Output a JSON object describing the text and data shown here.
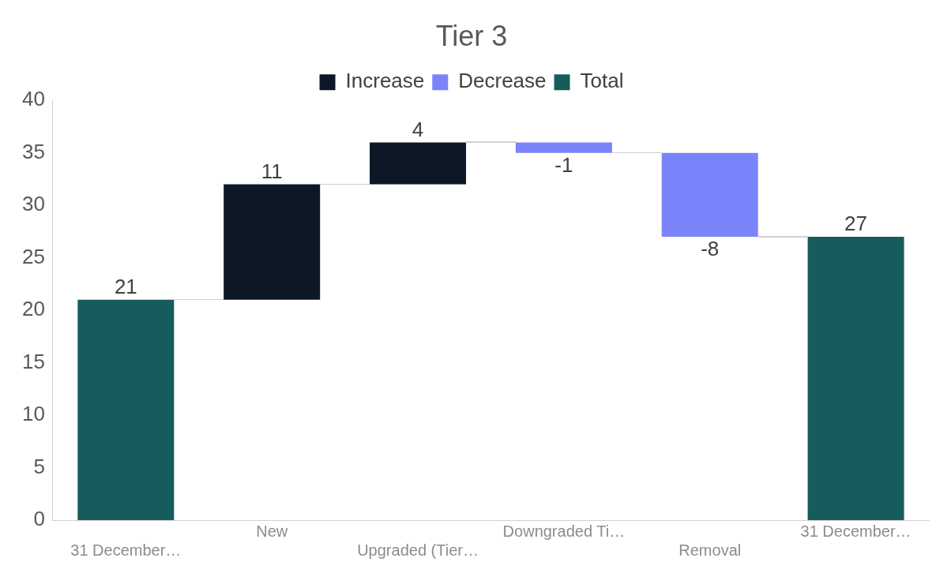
{
  "chart_data": {
    "type": "bar",
    "title": "Tier 3",
    "categories": [
      "31 December…",
      "New",
      "Upgraded (Tier…",
      "Downgraded Ti…",
      "Removal",
      "31 December…"
    ],
    "series": [
      {
        "name": "Increase",
        "color": "#0c1826",
        "values": [
          null,
          11,
          4,
          null,
          null,
          null
        ],
        "base": [
          null,
          21,
          32,
          null,
          null,
          null
        ]
      },
      {
        "name": "Decrease",
        "color": "#7b83fb",
        "values": [
          null,
          null,
          null,
          -1,
          -8,
          null
        ],
        "base": [
          null,
          null,
          null,
          36,
          35,
          null
        ]
      },
      {
        "name": "Total",
        "color": "#165c5d",
        "values": [
          21,
          null,
          null,
          null,
          null,
          27
        ],
        "base": [
          0,
          null,
          null,
          null,
          null,
          0
        ]
      }
    ],
    "ylim": [
      0,
      40
    ],
    "yticks": [
      0,
      5,
      10,
      15,
      20,
      25,
      30,
      35,
      40
    ],
    "grid": false,
    "legend": "top",
    "data_labels": true
  }
}
